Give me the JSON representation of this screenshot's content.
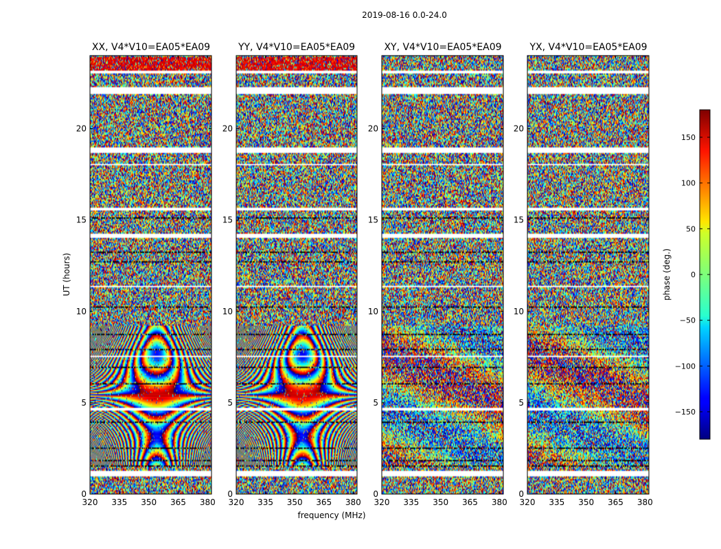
{
  "chart_data": {
    "type": "heatmap",
    "title": "2019-08-16 0.0-24.0",
    "xlabel": "frequency (MHz)",
    "ylabel": "UT (hours)",
    "xlim": [
      320,
      382
    ],
    "ylim": [
      0,
      24
    ],
    "x_ticks": [
      "320",
      "335",
      "350",
      "365",
      "380"
    ],
    "x_tick_values": [
      320,
      335,
      350,
      365,
      380
    ],
    "y_ticks": [
      "0",
      "5",
      "10",
      "15",
      "20"
    ],
    "y_tick_values": [
      0,
      5,
      10,
      15,
      20
    ],
    "panels": [
      {
        "title": "XX, V4*V10=EA05*EA09",
        "pattern": "parallel",
        "seed": 11
      },
      {
        "title": "YY, V4*V10=EA05*EA09",
        "pattern": "parallel",
        "seed": 23
      },
      {
        "title": "XY, V4*V10=EA05*EA09",
        "pattern": "cross",
        "seed": 37
      },
      {
        "title": "YX, V4*V10=EA05*EA09",
        "pattern": "cross",
        "seed": 53
      }
    ],
    "colorbar": {
      "label": "phase (deg.)",
      "range": [
        -180,
        180
      ],
      "ticks": [
        "150",
        "100",
        "50",
        "0",
        "−50",
        "−100",
        "−150"
      ],
      "tick_values": [
        150,
        100,
        50,
        0,
        -50,
        -100,
        -150
      ],
      "colormap": "jet"
    },
    "flagged_bands_hours": [
      [
        1.0,
        1.3
      ],
      [
        4.6,
        4.7
      ],
      [
        7.5,
        7.55
      ],
      [
        11.3,
        11.4
      ],
      [
        14.0,
        14.25
      ],
      [
        15.5,
        15.65
      ],
      [
        18.0,
        18.1
      ],
      [
        18.7,
        19.0
      ],
      [
        21.9,
        22.25
      ],
      [
        23.05,
        23.15
      ]
    ],
    "dark_bands_hours": [
      [
        1.5,
        1.55
      ],
      [
        1.8,
        1.85
      ],
      [
        2.5,
        2.55
      ],
      [
        2.9,
        2.95
      ],
      [
        3.9,
        3.95
      ],
      [
        6.0,
        6.05
      ],
      [
        6.9,
        6.95
      ],
      [
        7.9,
        7.95
      ],
      [
        8.7,
        8.75
      ],
      [
        10.2,
        10.25
      ],
      [
        11.9,
        11.95
      ],
      [
        12.7,
        12.75
      ],
      [
        13.2,
        13.25
      ],
      [
        14.6,
        14.65
      ],
      [
        15.1,
        15.15
      ]
    ]
  },
  "colors": {
    "axis": "#000000",
    "flagged": "#ffffff",
    "masked": "#000000"
  }
}
